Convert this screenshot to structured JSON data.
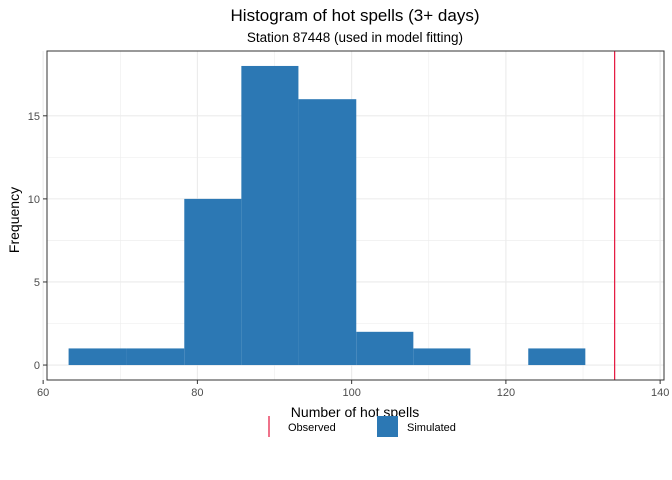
{
  "chart_data": {
    "type": "bar",
    "title": "Histogram of hot spells (3+ days)",
    "subtitle": "Station 87448 (used in model fitting)",
    "xlabel": "Number of hot spells",
    "ylabel": "Frequency",
    "xlim": [
      60.5,
      140.5
    ],
    "ylim": [
      -0.9,
      18.9
    ],
    "x_ticks": [
      60,
      80,
      100,
      120,
      140
    ],
    "y_ticks": [
      0,
      5,
      10,
      15
    ],
    "grid": true,
    "legend_position": "bottom",
    "bins": [
      {
        "x0": 63.3,
        "x1": 70.8,
        "count": 1
      },
      {
        "x0": 70.8,
        "x1": 78.3,
        "count": 1
      },
      {
        "x0": 78.3,
        "x1": 85.7,
        "count": 10
      },
      {
        "x0": 85.7,
        "x1": 93.1,
        "count": 18
      },
      {
        "x0": 93.1,
        "x1": 100.6,
        "count": 16
      },
      {
        "x0": 100.6,
        "x1": 108.0,
        "count": 2
      },
      {
        "x0": 108.0,
        "x1": 115.4,
        "count": 1
      },
      {
        "x0": 115.4,
        "x1": 122.9,
        "count": 0
      },
      {
        "x0": 122.9,
        "x1": 130.3,
        "count": 1
      }
    ],
    "observed": 134.1,
    "legend": [
      {
        "label": "Observed",
        "color": "#e4143c",
        "kind": "line"
      },
      {
        "label": "Simulated",
        "color": "#2c78b4",
        "kind": "fill"
      }
    ],
    "colors": {
      "bar": "#2c78b4",
      "observed": "#e4143c",
      "grid": "#ebebeb",
      "panel_border": "#333333"
    }
  }
}
